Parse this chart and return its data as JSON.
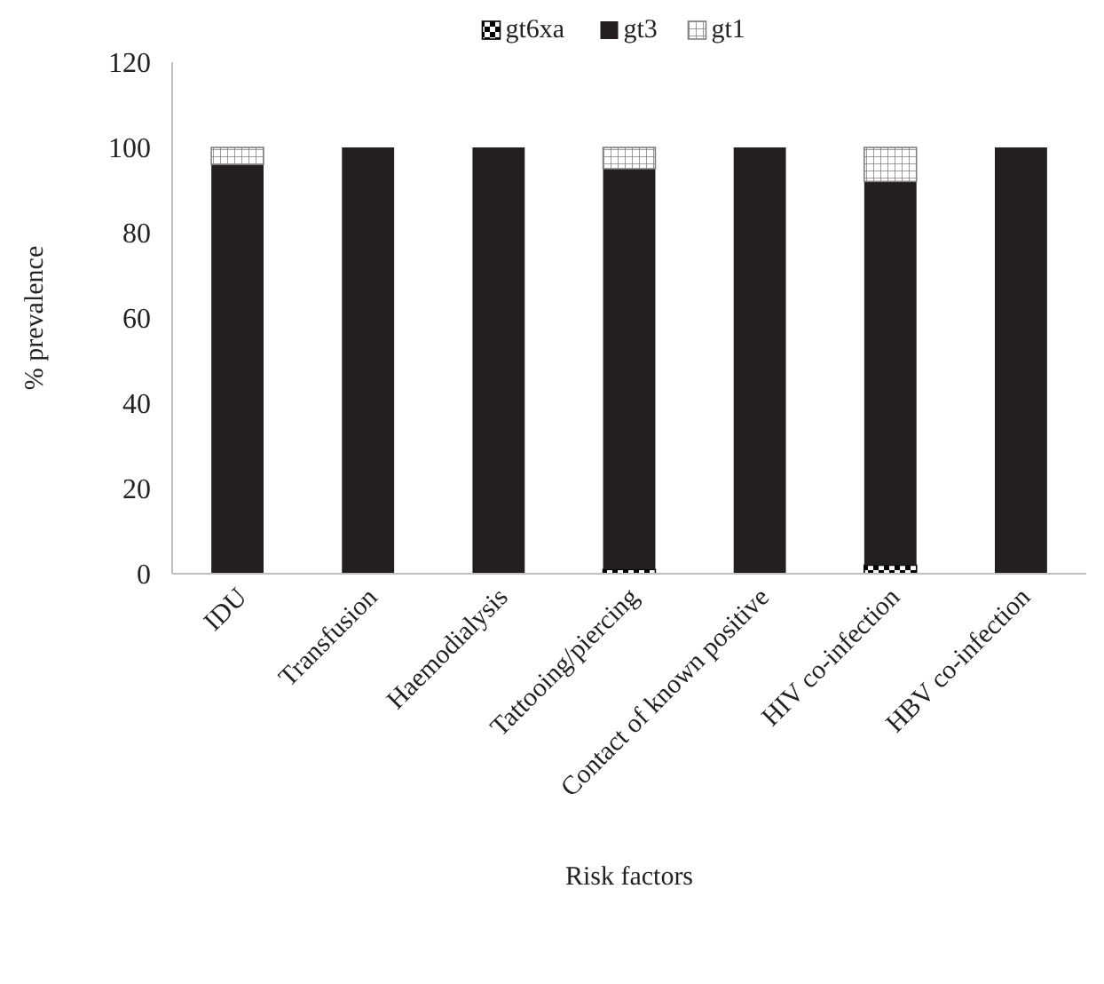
{
  "chart_data": {
    "type": "bar",
    "stacked": true,
    "xlabel": "Risk factors",
    "ylabel": "% prevalence",
    "categories": [
      "IDU",
      "Transfusion",
      "Haemodialysis",
      "Tattooing/piercing",
      "Contact of known positive",
      "HIV co-infection",
      "HBV co-infection"
    ],
    "series": [
      {
        "name": "gt6xa",
        "color": "#000000",
        "values": [
          0,
          0,
          0,
          1,
          0,
          2,
          0
        ]
      },
      {
        "name": "gt3",
        "color": "#231f20",
        "values": [
          96,
          100,
          100,
          94,
          100,
          90,
          100
        ]
      },
      {
        "name": "gt1",
        "color": "#808080",
        "values": [
          4,
          0,
          0,
          5,
          0,
          8,
          0
        ]
      }
    ],
    "ylim": [
      0,
      120
    ],
    "yticks": [
      0,
      20,
      40,
      60,
      80,
      100,
      120
    ],
    "grid": false,
    "legend": "top"
  }
}
